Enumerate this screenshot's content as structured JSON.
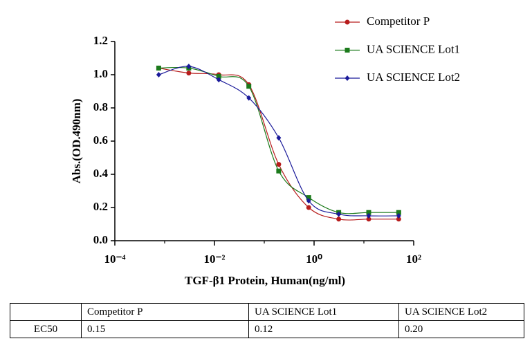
{
  "chart_data": {
    "type": "line",
    "x_label": "TGF-β1 Protein, Human(ng/ml)",
    "y_label": "Abs.(OD.490nm)",
    "x": [
      0.00076,
      0.00305,
      0.0122,
      0.049,
      0.195,
      0.78,
      3.125,
      12.5,
      50
    ],
    "series": [
      {
        "name": "Competitor P",
        "color": "#b71c1c",
        "marker": "circle",
        "values": [
          1.04,
          1.01,
          1.0,
          0.94,
          0.46,
          0.2,
          0.13,
          0.13,
          0.13
        ]
      },
      {
        "name": "UA SCIENCE Lot1",
        "color": "#1b7a1b",
        "marker": "square",
        "values": [
          1.04,
          1.04,
          0.99,
          0.93,
          0.42,
          0.26,
          0.17,
          0.17,
          0.17
        ]
      },
      {
        "name": "UA SCIENCE Lot2",
        "color": "#1a1a9a",
        "marker": "diamond",
        "values": [
          1.0,
          1.05,
          0.97,
          0.86,
          0.62,
          0.24,
          0.16,
          0.15,
          0.15
        ]
      }
    ],
    "xscale": "log",
    "xlim": [
      0.0001,
      100
    ],
    "xticks": [
      {
        "value": 0.0001,
        "label": "10⁻⁴"
      },
      {
        "value": 0.01,
        "label": "10⁻²"
      },
      {
        "value": 1,
        "label": "10⁰"
      },
      {
        "value": 100,
        "label": "10²"
      }
    ],
    "xminorticks": [
      0.001,
      0.1,
      10
    ],
    "ylim": [
      0,
      1.2
    ],
    "yticks": [
      {
        "value": 0,
        "label": "0.0"
      },
      0.2,
      0.4,
      0.6,
      0.8,
      {
        "value": 1,
        "label": "1.0"
      },
      1.2
    ],
    "legend": "upper right"
  },
  "table": {
    "columns": [
      "Competitor P",
      "UA SCIENCE Lot1",
      "UA SCIENCE Lot2"
    ],
    "rows": [
      {
        "label": "EC50",
        "cells": [
          "0.15",
          "0.12",
          "0.20"
        ]
      }
    ]
  }
}
